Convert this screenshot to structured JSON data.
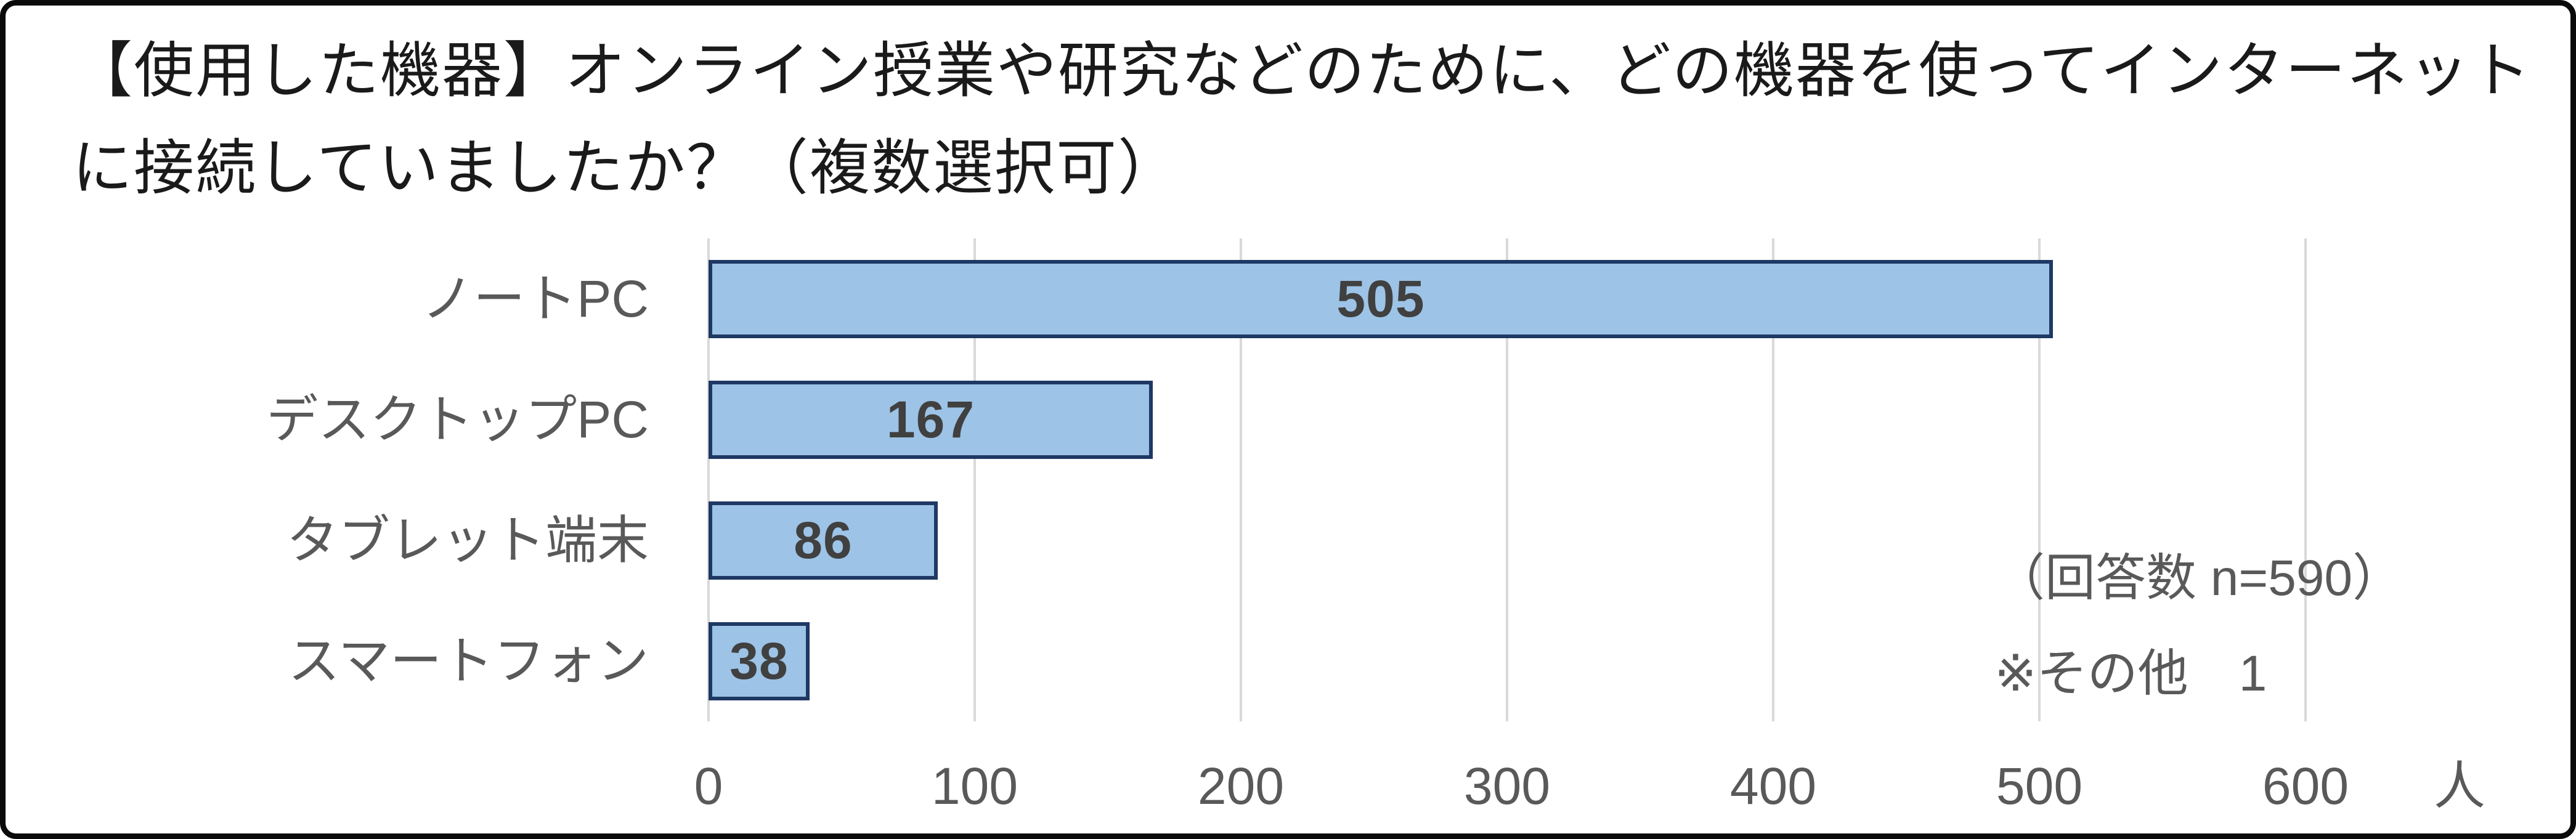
{
  "title": {
    "line1": "【使用した機器】オンライン授業や研究などのために、どの機器を使ってインターネット",
    "line2": "に接続していましたか？（複数選択可）"
  },
  "chart_data": {
    "type": "bar",
    "orientation": "horizontal",
    "title": "【使用した機器】オンライン授業や研究などのために、どの機器を使ってインターネットに接続していましたか？（複数選択可）",
    "categories": [
      "ノートPC",
      "デスクトップPC",
      "タブレット端末",
      "スマートフォン"
    ],
    "values": [
      505,
      167,
      86,
      38
    ],
    "value_labels": [
      "505",
      "167",
      "86",
      "38"
    ],
    "xlabel": "",
    "ylabel": "",
    "xlim": [
      0,
      600
    ],
    "x_ticks": [
      "0",
      "100",
      "200",
      "300",
      "400",
      "500",
      "600"
    ],
    "x_unit": "人",
    "grid": true,
    "legend": "none",
    "annotations": [
      "（回答数 n=590）",
      "※その他　1"
    ],
    "colors": {
      "bar_fill": "#9DC3E6",
      "bar_border": "#1F3864",
      "gridline": "#D9D9D9",
      "axis_label": "#595959",
      "value_label": "#404040",
      "title_text": "#1A1A1A",
      "frame_border": "#0A0A0A",
      "background": "#FFFFFF"
    }
  }
}
